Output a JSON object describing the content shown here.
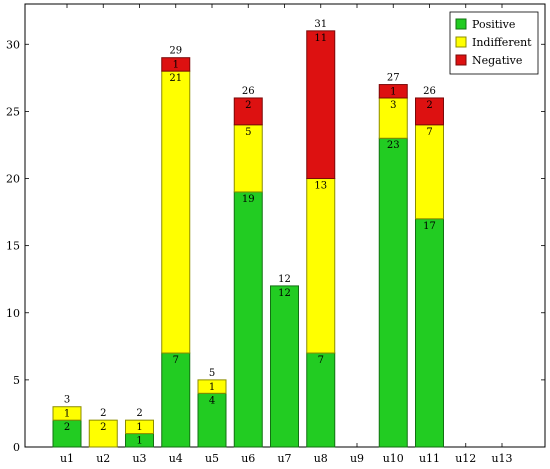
{
  "chart_data": {
    "type": "bar",
    "stacked": true,
    "title": "",
    "xlabel": "",
    "ylabel": "",
    "categories": [
      "u1",
      "u2",
      "u3",
      "u4",
      "u5",
      "u6",
      "u7",
      "u8",
      "u9",
      "u10",
      "u11",
      "u12",
      "u13"
    ],
    "series": [
      {
        "name": "Positive",
        "color": "#22cc22",
        "values": [
          2,
          0,
          1,
          7,
          4,
          19,
          12,
          7,
          0,
          23,
          17,
          0,
          0
        ]
      },
      {
        "name": "Indifferent",
        "color": "#ffff00",
        "values": [
          1,
          2,
          1,
          21,
          1,
          5,
          0,
          13,
          0,
          3,
          7,
          0,
          0
        ]
      },
      {
        "name": "Negative",
        "color": "#dd1111",
        "values": [
          0,
          0,
          0,
          1,
          0,
          2,
          0,
          11,
          0,
          1,
          2,
          0,
          0
        ]
      }
    ],
    "totals": [
      3,
      2,
      2,
      29,
      5,
      26,
      12,
      31,
      null,
      27,
      26,
      null,
      null
    ],
    "ylim": [
      0,
      33
    ],
    "yticks": [
      0,
      5,
      10,
      15,
      20,
      25,
      30
    ],
    "grid": false,
    "legend_position": "top-right"
  }
}
